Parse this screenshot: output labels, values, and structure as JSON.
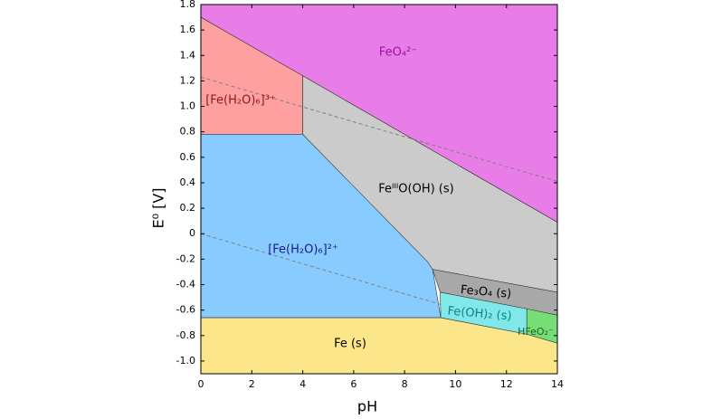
{
  "chart_data": {
    "type": "region",
    "x_label": "pH",
    "y_label": "E⁰ [V]",
    "xlim": [
      0,
      14
    ],
    "ylim": [
      -1.1,
      1.8
    ],
    "xticks": [
      0,
      2,
      4,
      6,
      8,
      10,
      12,
      14
    ],
    "yticks": [
      {
        "value": -1.0,
        "label": "-1.0"
      },
      -0.8,
      -0.6,
      -0.4,
      -0.2,
      0,
      0.2,
      0.4,
      0.6,
      0.8,
      {
        "value": 1.0,
        "label": "1.0"
      },
      1.2,
      1.4,
      1.6,
      1.8
    ],
    "regions": [
      {
        "name": "FeO₄²⁻",
        "color": "#e87de8",
        "label_color": "#a010a0",
        "x": [
          0,
          14,
          14,
          4,
          0
        ],
        "y": [
          1.8,
          1.8,
          0.09,
          1.24,
          1.7
        ]
      },
      {
        "name": "[Fe(H₂O)₆]³⁺",
        "color": "#ffa0a0",
        "label_color": "#8b1a1a",
        "x": [
          0,
          4,
          4,
          0
        ],
        "y": [
          1.7,
          1.24,
          0.78,
          0.78
        ]
      },
      {
        "name": "FeᴵᴵᴵO(OH) (s)",
        "color": "#cbcbcb",
        "label_color": "#000000",
        "x": [
          4,
          14,
          14,
          9.1,
          4
        ],
        "y": [
          1.24,
          0.09,
          -0.46,
          -0.28,
          0.78
        ]
      },
      {
        "name": "[Fe(H₂O)₆]²⁺",
        "color": "#88ccff",
        "label_color": "#1a1a8b",
        "x": [
          0,
          4,
          8.9,
          9.1,
          9.42,
          0
        ],
        "y": [
          0.78,
          0.78,
          -0.22,
          -0.28,
          -0.66,
          -0.66
        ]
      },
      {
        "name": "Fe₃O₄ (s)",
        "color": "#a8a8a8",
        "label_color": "#000000",
        "x": [
          9.1,
          14,
          14,
          9.4
        ],
        "y": [
          -0.28,
          -0.46,
          -0.64,
          -0.46
        ]
      },
      {
        "name": "Fe(OH)₂ (s)",
        "color": "#80e8e8",
        "label_color": "#108080",
        "x": [
          9.4,
          12.8,
          12.8,
          9.42
        ],
        "y": [
          -0.46,
          -0.59,
          -0.79,
          -0.66
        ]
      },
      {
        "name": "HFeO₂⁻",
        "color": "#77dd77",
        "label_color": "#206020",
        "x": [
          12.8,
          14,
          14,
          12.8
        ],
        "y": [
          -0.59,
          -0.64,
          -0.86,
          -0.79
        ]
      },
      {
        "name": "Fe (s)",
        "color": "#fce68a",
        "label_color": "#000000",
        "x": [
          0,
          9.42,
          12.8,
          14,
          14,
          0
        ],
        "y": [
          -0.66,
          -0.66,
          -0.79,
          -0.86,
          -1.1,
          -1.1
        ]
      }
    ],
    "series": [
      {
        "color": "#808080",
        "x": [
          0,
          14
        ],
        "values": [
          1.23,
          0.41
        ]
      },
      {
        "color": "#808080",
        "x": [
          0,
          9.4
        ],
        "values": [
          0,
          -0.555
        ]
      }
    ]
  }
}
